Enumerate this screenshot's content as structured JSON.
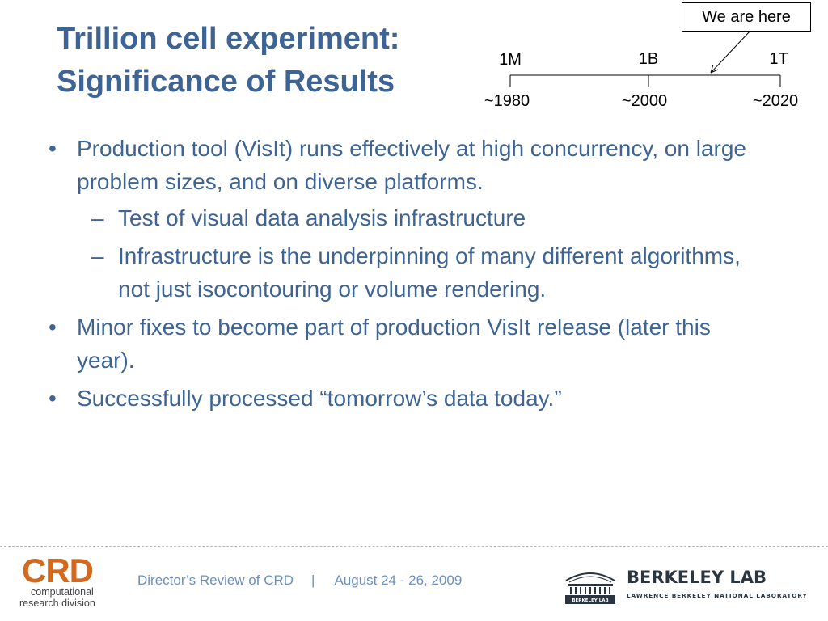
{
  "slide": {
    "title_line1": "Trillion cell experiment:",
    "title_line2": "Significance of Results"
  },
  "timeline": {
    "callout": "We are here",
    "ticks": [
      {
        "size_label": "1M",
        "year_label": "~1980"
      },
      {
        "size_label": "1B",
        "year_label": "~2000"
      },
      {
        "size_label": "1T",
        "year_label": "~2020"
      }
    ]
  },
  "bullets": [
    {
      "mark": "•",
      "text": "Production tool (VisIt) runs effectively at high concurrency, on large problem sizes, and on diverse platforms.",
      "subs": [
        {
          "mark": "–",
          "text": "Test of visual data analysis infrastructure"
        },
        {
          "mark": "–",
          "text": "Infrastructure is the underpinning of many different algorithms, not just isocontouring or volume rendering."
        }
      ]
    },
    {
      "mark": "•",
      "text": "Minor fixes to become part of production VisIt release (later this year)."
    },
    {
      "mark": "•",
      "text": "Successfully processed “tomorrow’s data today.”"
    }
  ],
  "footer": {
    "event": "Director’s Review of CRD",
    "separator": "|",
    "dates": "August 24 - 26, 2009",
    "crd_logo": {
      "wordmark": "CRD",
      "line1": "computational",
      "line2": "research division",
      "color": "#d2691e"
    },
    "berkeley_logo": {
      "name": "BERKELEY LAB",
      "tagline": "LAWRENCE BERKELEY NATIONAL LABORATORY",
      "plate": "BERKELEY LAB"
    }
  },
  "colors": {
    "title": "#3d6494",
    "body_text": "#3d6494",
    "footer_text": "#6d8fbf",
    "crd_orange": "#d2691e"
  }
}
